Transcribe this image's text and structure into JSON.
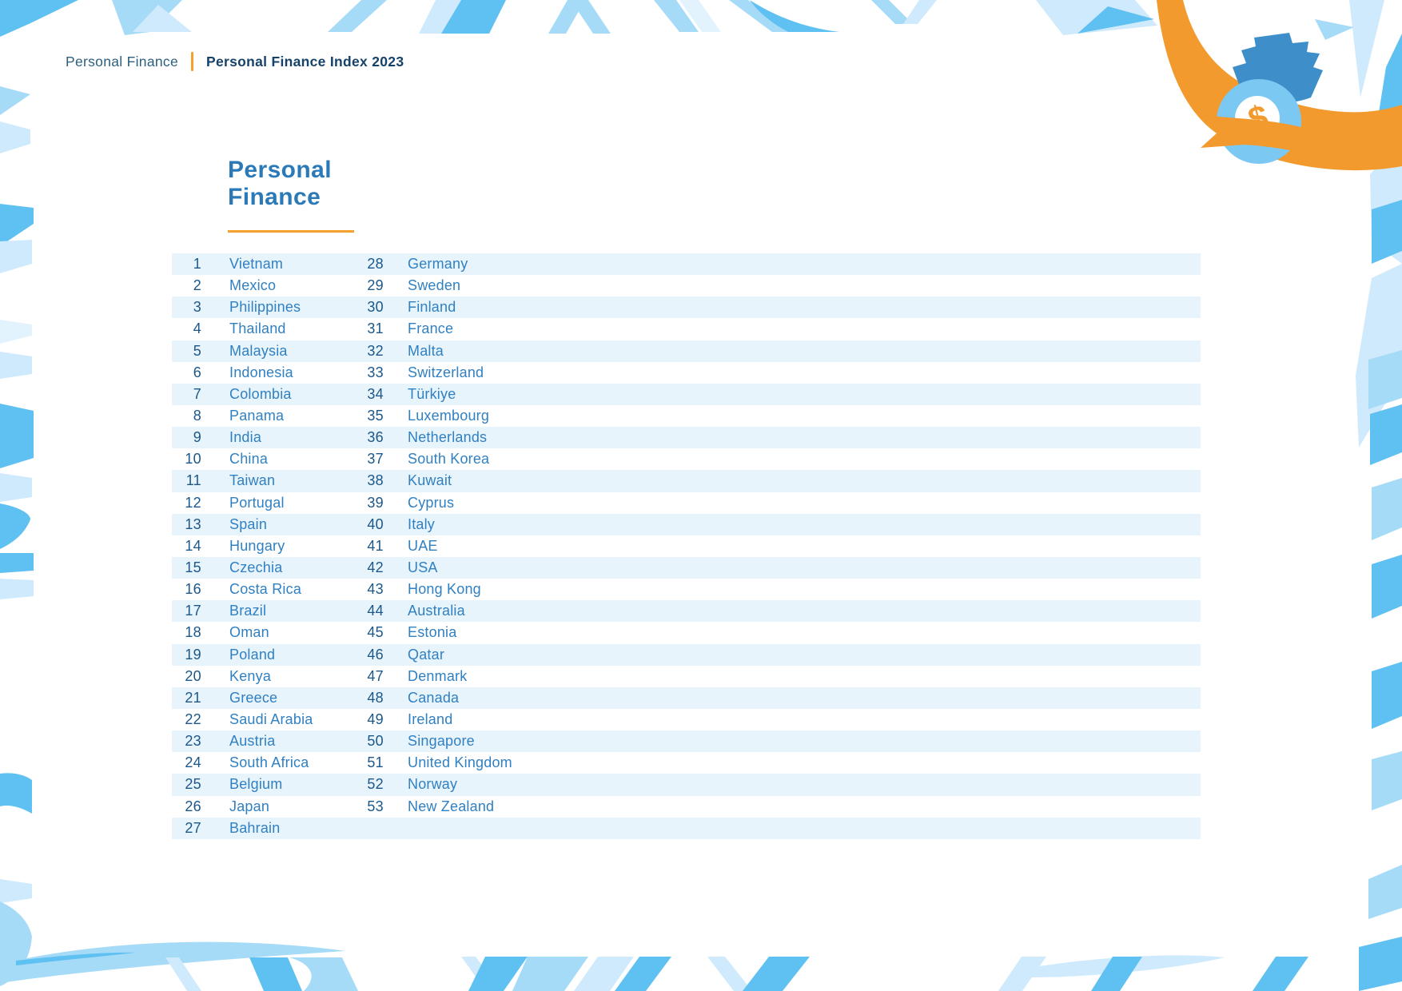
{
  "breadcrumb": {
    "section": "Personal Finance",
    "page": "Personal Finance Index 2023"
  },
  "title": {
    "line1": "Personal",
    "line2": "Finance"
  },
  "ranking": [
    {
      "rank": "1",
      "country": "Vietnam"
    },
    {
      "rank": "2",
      "country": "Mexico"
    },
    {
      "rank": "3",
      "country": "Philippines"
    },
    {
      "rank": "4",
      "country": "Thailand"
    },
    {
      "rank": "5",
      "country": "Malaysia"
    },
    {
      "rank": "6",
      "country": "Indonesia"
    },
    {
      "rank": "7",
      "country": "Colombia"
    },
    {
      "rank": "8",
      "country": "Panama"
    },
    {
      "rank": "9",
      "country": "India"
    },
    {
      "rank": "10",
      "country": "China"
    },
    {
      "rank": "11",
      "country": "Taiwan"
    },
    {
      "rank": "12",
      "country": "Portugal"
    },
    {
      "rank": "13",
      "country": "Spain"
    },
    {
      "rank": "14",
      "country": "Hungary"
    },
    {
      "rank": "15",
      "country": "Czechia"
    },
    {
      "rank": "16",
      "country": "Costa Rica"
    },
    {
      "rank": "17",
      "country": "Brazil"
    },
    {
      "rank": "18",
      "country": "Oman"
    },
    {
      "rank": "19",
      "country": "Poland"
    },
    {
      "rank": "20",
      "country": "Kenya"
    },
    {
      "rank": "21",
      "country": "Greece"
    },
    {
      "rank": "22",
      "country": "Saudi Arabia"
    },
    {
      "rank": "23",
      "country": "Austria"
    },
    {
      "rank": "24",
      "country": "South Africa"
    },
    {
      "rank": "25",
      "country": "Belgium"
    },
    {
      "rank": "26",
      "country": "Japan"
    },
    {
      "rank": "27",
      "country": "Bahrain"
    },
    {
      "rank": "28",
      "country": "Germany"
    },
    {
      "rank": "29",
      "country": "Sweden"
    },
    {
      "rank": "30",
      "country": "Finland"
    },
    {
      "rank": "31",
      "country": "France"
    },
    {
      "rank": "32",
      "country": "Malta"
    },
    {
      "rank": "33",
      "country": "Switzerland"
    },
    {
      "rank": "34",
      "country": "Türkiye"
    },
    {
      "rank": "35",
      "country": "Luxembourg"
    },
    {
      "rank": "36",
      "country": "Netherlands"
    },
    {
      "rank": "37",
      "country": "South Korea"
    },
    {
      "rank": "38",
      "country": "Kuwait"
    },
    {
      "rank": "39",
      "country": "Cyprus"
    },
    {
      "rank": "40",
      "country": "Italy"
    },
    {
      "rank": "41",
      "country": "UAE"
    },
    {
      "rank": "42",
      "country": "USA"
    },
    {
      "rank": "43",
      "country": "Hong Kong"
    },
    {
      "rank": "44",
      "country": "Australia"
    },
    {
      "rank": "45",
      "country": "Estonia"
    },
    {
      "rank": "46",
      "country": "Qatar"
    },
    {
      "rank": "47",
      "country": "Denmark"
    },
    {
      "rank": "48",
      "country": "Canada"
    },
    {
      "rank": "49",
      "country": "Ireland"
    },
    {
      "rank": "50",
      "country": "Singapore"
    },
    {
      "rank": "51",
      "country": "United Kingdom"
    },
    {
      "rank": "52",
      "country": "Norway"
    },
    {
      "rank": "53",
      "country": "New Zealand"
    }
  ],
  "icons": {
    "money_bag": "money-bag-icon",
    "dollar_symbol": "$"
  },
  "colors": {
    "accent_orange": "#F29A2E",
    "title_blue": "#2B7AB7",
    "rank_navy": "#1B578A",
    "country_blue": "#3080C2",
    "row_stripe": "#E8F4FB",
    "decor_blue_strong": "#5FC0F2",
    "decor_blue_light": "#A6DBF8",
    "decor_blue_pale": "#CFEAFC",
    "bag_blue": "#7BC9F3",
    "bag_cap_blue": "#3E8FC9"
  }
}
